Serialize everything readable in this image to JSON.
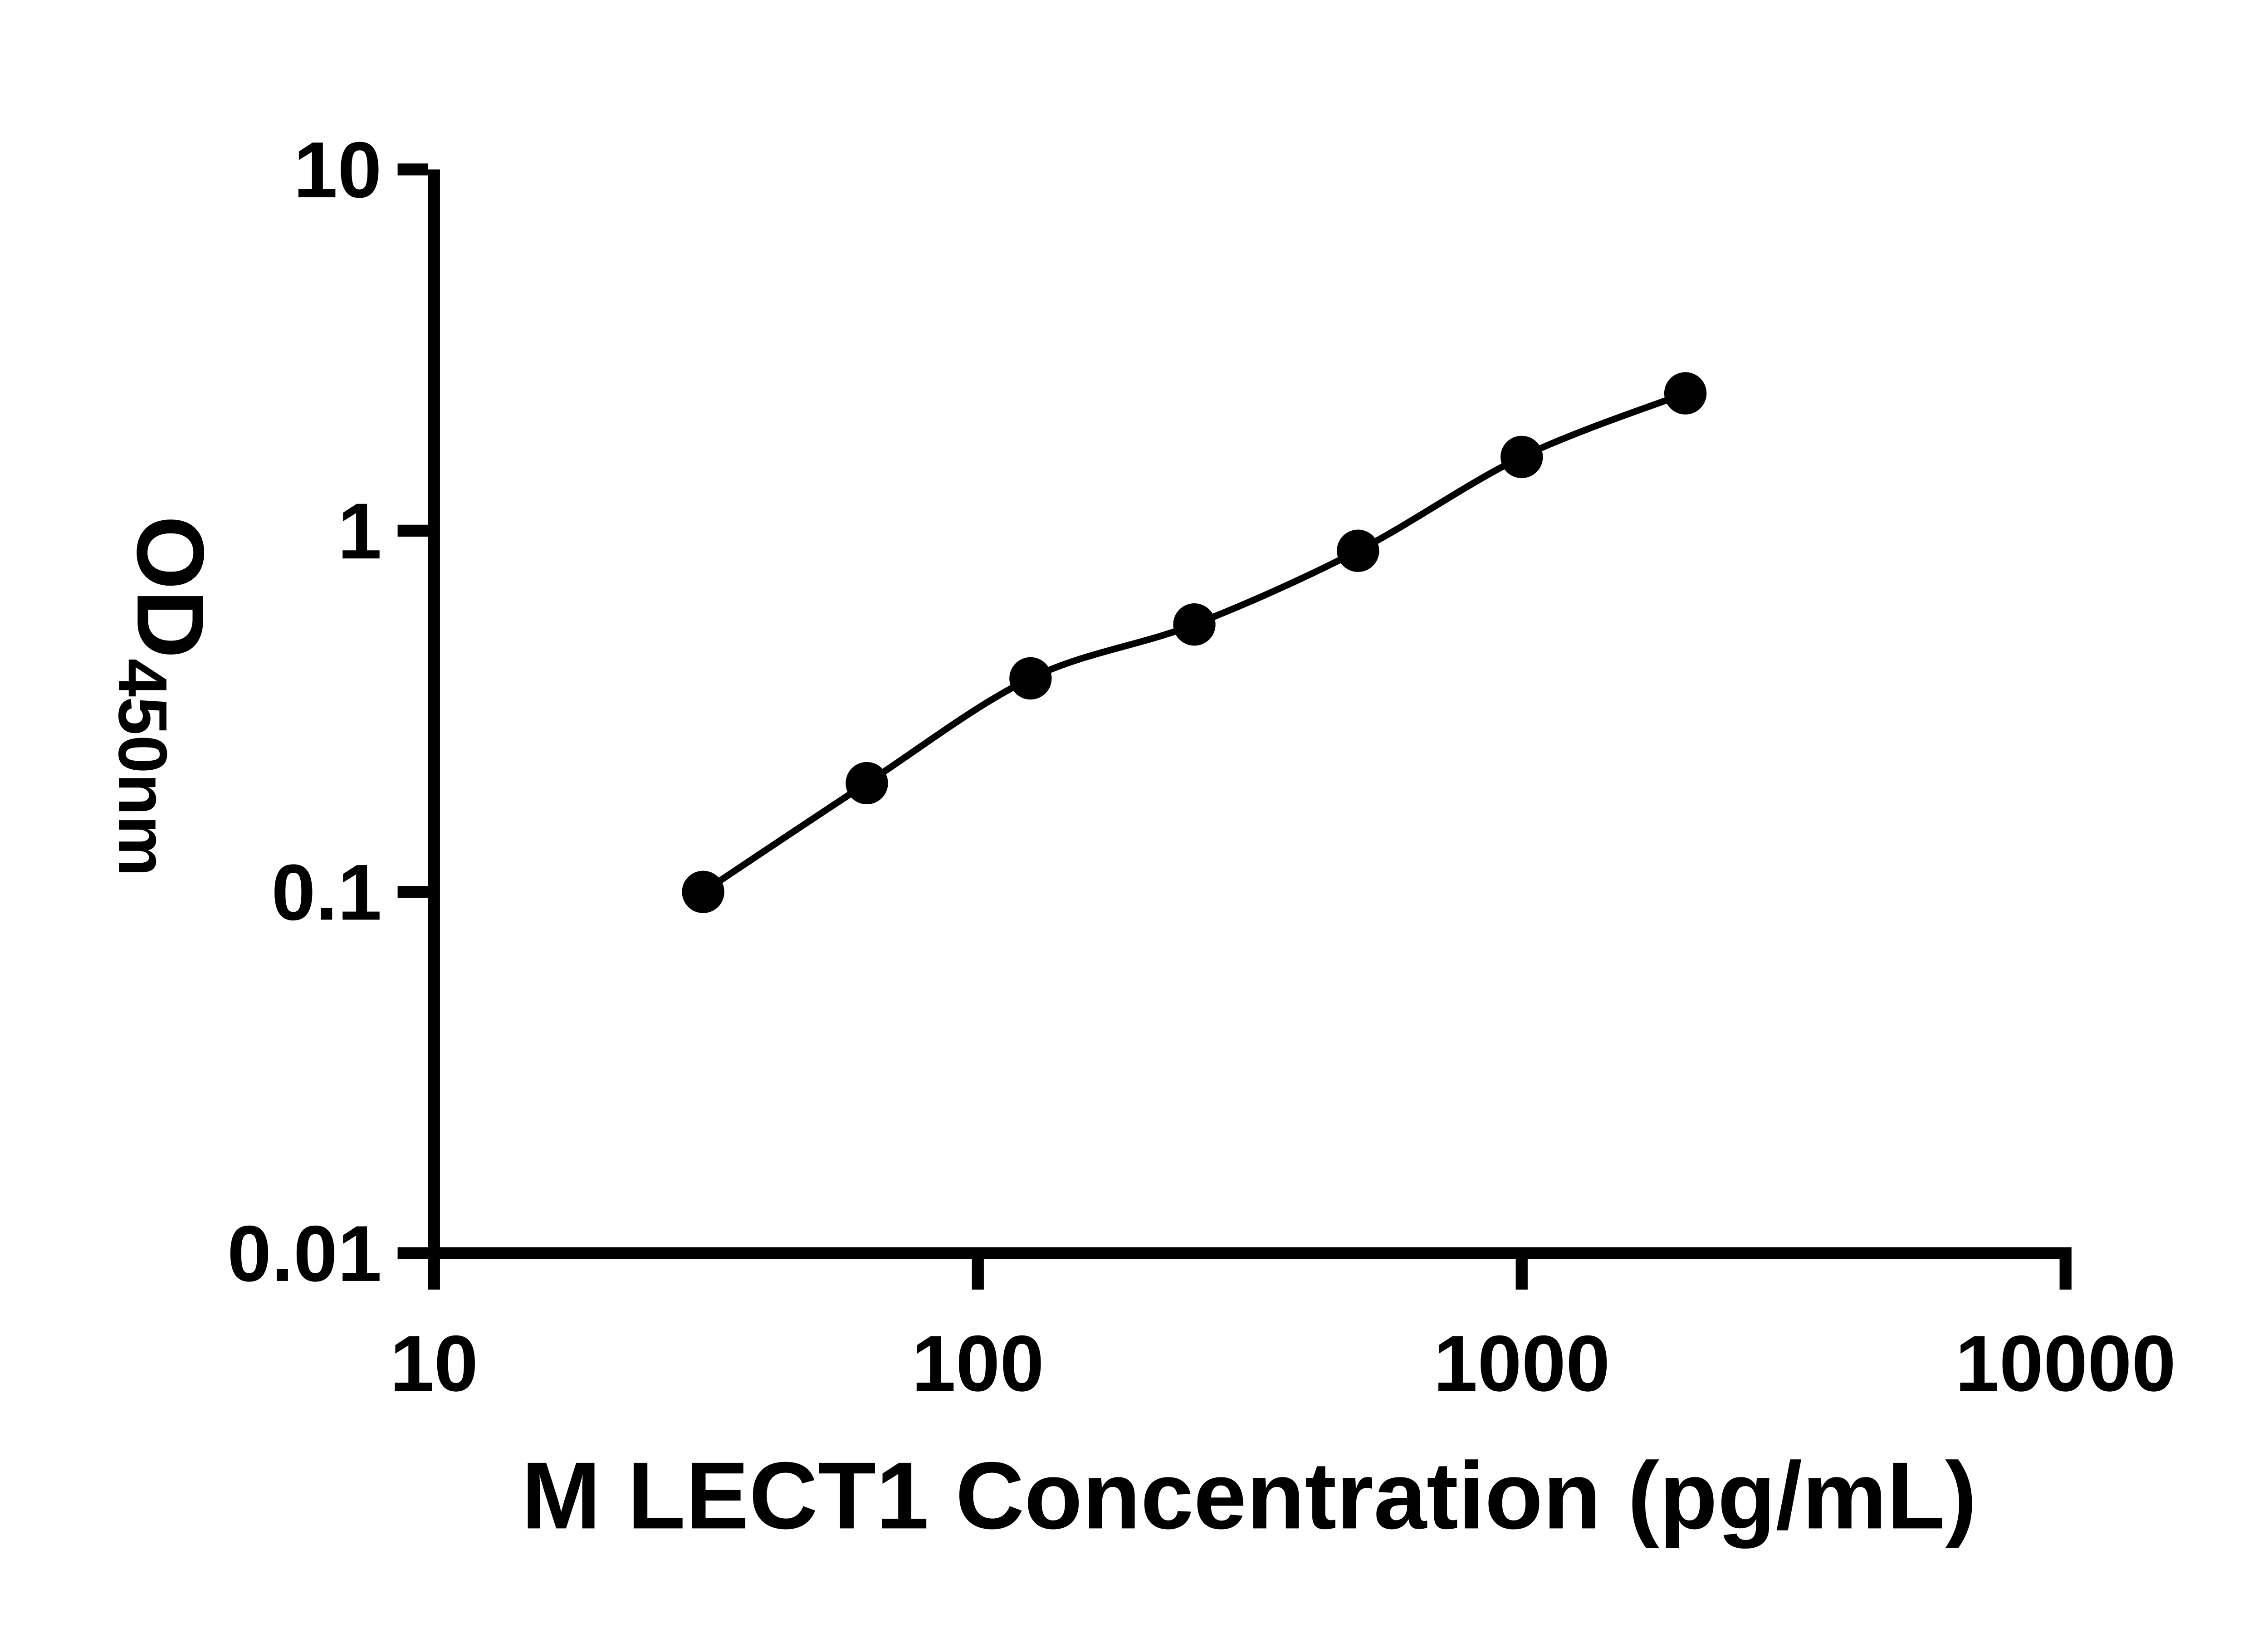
{
  "figure": {
    "background_color": "#ffffff",
    "axis_color": "#000000"
  },
  "chart_data": {
    "type": "scatter",
    "x": [
      31.25,
      62.5,
      125,
      250,
      500,
      1000,
      2000
    ],
    "y": [
      0.1,
      0.2,
      0.39,
      0.55,
      0.88,
      1.6,
      2.4
    ],
    "x_scale": "log",
    "y_scale": "log",
    "xlim": [
      10,
      10000
    ],
    "ylim": [
      0.01,
      10
    ],
    "x_ticks": [
      10,
      100,
      1000,
      10000
    ],
    "x_tick_labels": [
      "10",
      "100",
      "1000",
      "10000"
    ],
    "y_ticks": [
      10,
      1,
      0.1,
      0.01
    ],
    "y_tick_labels": [
      "10",
      "1",
      "0.1",
      "0.01"
    ],
    "xlabel": "M LECT1 Concentration (pg/mL)",
    "ylabel": {
      "base": "OD",
      "subscript": "450nm"
    },
    "title": "",
    "grid": false,
    "legend": false,
    "marker": {
      "shape": "circle",
      "color": "#000000"
    },
    "line": {
      "style": "smooth",
      "color": "#000000"
    }
  }
}
